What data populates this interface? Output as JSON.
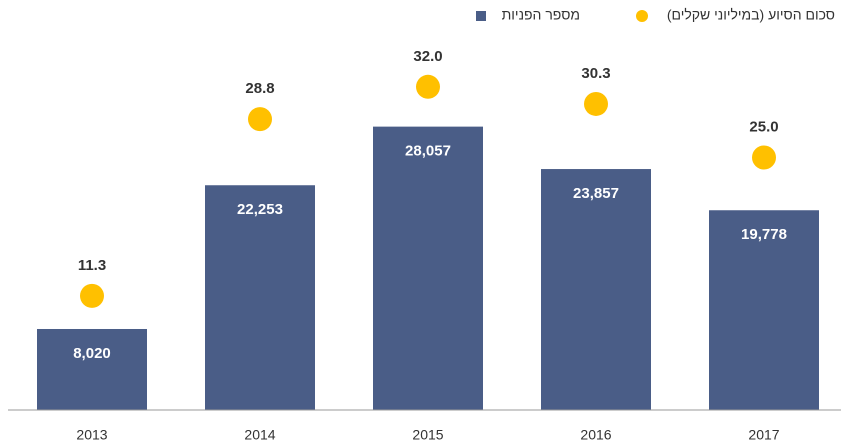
{
  "chart_data": {
    "type": "bar-dot",
    "categories": [
      "2013",
      "2014",
      "2015",
      "2016",
      "2017"
    ],
    "series": [
      {
        "name": "מספר הפניות",
        "type": "bar",
        "color": "#4a5d87",
        "values": [
          8020,
          22253,
          28057,
          23857,
          19778
        ],
        "value_labels": [
          "8,020",
          "22,253",
          "28,057",
          "23,857",
          "19,778"
        ]
      },
      {
        "name": "סכום הסיוע (במיליוני שקלים)",
        "type": "dot",
        "axis": "y2",
        "color": "#ffc000",
        "values": [
          11.3,
          28.8,
          32.0,
          30.3,
          25.0
        ],
        "value_labels": [
          "11.3",
          "28.8",
          "32.0",
          "30.3",
          "25.0"
        ]
      }
    ],
    "ylim": [
      0,
      40000
    ],
    "y2lim": [
      0,
      40
    ]
  }
}
